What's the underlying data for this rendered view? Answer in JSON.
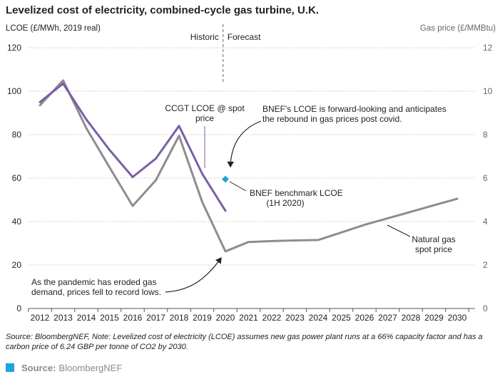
{
  "header": {
    "title": "Levelized cost of electricity, combined-cycle gas turbine, U.K.",
    "left_axis_title": "LCOE (£/MWh, 2019 real)",
    "right_axis_title": "Gas price (£/MMBtu)"
  },
  "chart_data": {
    "type": "line",
    "x": [
      2012,
      2013,
      2014,
      2015,
      2016,
      2017,
      2018,
      2019,
      2020,
      2021,
      2022,
      2023,
      2024,
      2025,
      2026,
      2027,
      2028,
      2029,
      2030
    ],
    "x_tick_labels": [
      "2012",
      "2013",
      "2014",
      "2015",
      "2016",
      "2017",
      "2018",
      "2019",
      "2020",
      "2021",
      "2022",
      "2023",
      "2024",
      "2025",
      "2026",
      "2027",
      "2028",
      "2029",
      "2030"
    ],
    "ylim_left": [
      0,
      120
    ],
    "ylim_right": [
      0,
      12
    ],
    "y_left_ticks": [
      "0",
      "20",
      "40",
      "60",
      "80",
      "100",
      "120"
    ],
    "y_right_ticks": [
      "0",
      "2",
      "4",
      "6",
      "8",
      "10",
      "12"
    ],
    "grid": "horizontal dotted",
    "divider": {
      "x": 2019.9,
      "left_label": "Historic",
      "right_label": "Forecast"
    },
    "series": [
      {
        "name": "CCGT LCOE @ spot price",
        "axis": "left",
        "color": "#7b5ea7",
        "x": [
          2012,
          2013,
          2014,
          2015,
          2016,
          2017,
          2018,
          2019,
          2020
        ],
        "values": [
          95,
          103.5,
          87,
          73,
          60.5,
          69,
          84,
          62,
          45
        ]
      },
      {
        "name": "Natural gas spot price",
        "axis": "right",
        "color": "#8d8d8d",
        "x": [
          2012,
          2013,
          2014,
          2015,
          2016,
          2017,
          2018,
          2019,
          2020,
          2021,
          2022,
          2023,
          2024,
          2025,
          2026,
          2027,
          2028,
          2029,
          2030
        ],
        "values": [
          9.35,
          10.5,
          8.3,
          6.5,
          4.72,
          5.9,
          7.95,
          4.9,
          2.63,
          3.06,
          3.1,
          3.13,
          3.15,
          3.5,
          3.85,
          4.15,
          4.45,
          4.75,
          5.05
        ]
      }
    ],
    "points": [
      {
        "name": "BNEF benchmark LCOE (1H 2020)",
        "axis": "left",
        "x": 2020,
        "y": 59.5,
        "color": "#1aa5dc"
      }
    ],
    "annotations": {
      "ccgt_label_line1": "CCGT LCOE @ spot",
      "ccgt_label_line2": "price",
      "bnef_forward_line1": "BNEF's LCOE is forward-looking and anticipates",
      "bnef_forward_line2": "the rebound in gas prices post covid.",
      "benchmark_line1": "BNEF benchmark LCOE",
      "benchmark_line2": "(1H 2020)",
      "pandemic_line1": "As the pandemic has eroded gas",
      "pandemic_line2": "demand, prices fell to record lows.",
      "gas_label_line1": "Natural gas",
      "gas_label_line2": "spot price"
    }
  },
  "footer": {
    "note": "Source: BloombergNEF, Note: Levelized cost of electricity (LCOE) assumes new gas power plant runs at a 66% capacity factor and has a carbon price of 6.24 GBP per tonne of CO2 by 2030.",
    "source_label": "Source:",
    "source_name": "BloombergNEF",
    "source_color": "#1aa5dc"
  }
}
